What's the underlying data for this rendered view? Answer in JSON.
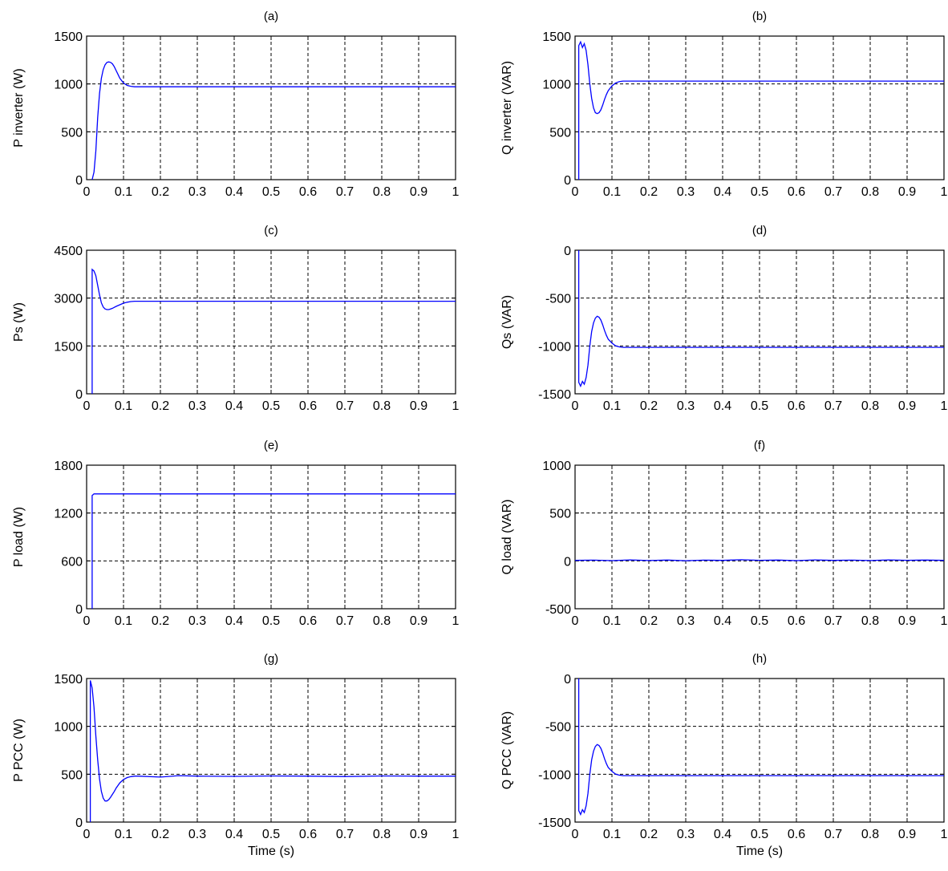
{
  "colors": {
    "line": "#0000ff",
    "axis": "#000000",
    "background": "#ffffff"
  },
  "chart_data": [
    {
      "type": "line",
      "title": "(a)",
      "xlabel": "",
      "ylabel": "P inverter (W)",
      "xlim": [
        0,
        1
      ],
      "ylim": [
        0,
        1500
      ],
      "xticks": [
        "0",
        "0.1",
        "0.2",
        "0.3",
        "0.4",
        "0.5",
        "0.6",
        "0.7",
        "0.8",
        "0.9",
        "1"
      ],
      "yticks": [
        "0",
        "500",
        "1000",
        "1500"
      ],
      "grid": true,
      "series": [
        {
          "x": [
            0.015,
            0.02,
            0.025,
            0.03,
            0.035,
            0.04,
            0.045,
            0.05,
            0.055,
            0.06,
            0.065,
            0.07,
            0.075,
            0.08,
            0.085,
            0.09,
            0.1,
            0.11,
            0.12,
            0.13,
            0.14,
            0.2,
            0.4,
            0.6,
            0.8,
            1.0
          ],
          "y": [
            0,
            80,
            300,
            650,
            900,
            1060,
            1150,
            1200,
            1225,
            1230,
            1225,
            1210,
            1180,
            1140,
            1100,
            1060,
            1010,
            985,
            975,
            970,
            970,
            970,
            970,
            970,
            970,
            970
          ]
        }
      ]
    },
    {
      "type": "line",
      "title": "(b)",
      "xlabel": "",
      "ylabel": "Q inverter (VAR)",
      "xlim": [
        0,
        1
      ],
      "ylim": [
        0,
        1500
      ],
      "xticks": [
        "0",
        "0.1",
        "0.2",
        "0.3",
        "0.4",
        "0.5",
        "0.6",
        "0.7",
        "0.8",
        "0.9",
        "1"
      ],
      "yticks": [
        "0",
        "500",
        "1000",
        "1500"
      ],
      "grid": true,
      "series": [
        {
          "x": [
            0.01,
            0.01,
            0.015,
            0.02,
            0.025,
            0.03,
            0.035,
            0.04,
            0.045,
            0.05,
            0.055,
            0.06,
            0.065,
            0.07,
            0.075,
            0.08,
            0.085,
            0.09,
            0.1,
            0.11,
            0.12,
            0.13,
            0.14,
            0.2,
            0.4,
            0.6,
            0.8,
            1.0
          ],
          "y": [
            0,
            1400,
            1440,
            1380,
            1420,
            1350,
            1200,
            1000,
            850,
            750,
            700,
            690,
            700,
            730,
            780,
            840,
            890,
            930,
            980,
            1010,
            1025,
            1030,
            1030,
            1030,
            1030,
            1030,
            1030,
            1030
          ]
        }
      ]
    },
    {
      "type": "line",
      "title": "(c)",
      "xlabel": "",
      "ylabel": "Ps (W)",
      "xlim": [
        0,
        1
      ],
      "ylim": [
        0,
        4500
      ],
      "xticks": [
        "0",
        "0.1",
        "0.2",
        "0.3",
        "0.4",
        "0.5",
        "0.6",
        "0.7",
        "0.8",
        "0.9",
        "1"
      ],
      "yticks": [
        "0",
        "1500",
        "3000",
        "4500"
      ],
      "grid": true,
      "series": [
        {
          "x": [
            0.015,
            0.015,
            0.02,
            0.025,
            0.03,
            0.035,
            0.04,
            0.045,
            0.05,
            0.055,
            0.06,
            0.065,
            0.07,
            0.075,
            0.08,
            0.09,
            0.1,
            0.11,
            0.12,
            0.13,
            0.14,
            0.2,
            0.4,
            0.6,
            0.8,
            1.0
          ],
          "y": [
            0,
            3900,
            3850,
            3700,
            3400,
            3100,
            2850,
            2720,
            2660,
            2640,
            2640,
            2660,
            2680,
            2710,
            2740,
            2790,
            2840,
            2870,
            2890,
            2900,
            2900,
            2900,
            2900,
            2900,
            2900,
            2900
          ]
        }
      ]
    },
    {
      "type": "line",
      "title": "(d)",
      "xlabel": "",
      "ylabel": "Qs (VAR)",
      "xlim": [
        0,
        1
      ],
      "ylim": [
        -1500,
        0
      ],
      "xticks": [
        "0",
        "0.1",
        "0.2",
        "0.3",
        "0.4",
        "0.5",
        "0.6",
        "0.7",
        "0.8",
        "0.9",
        "1"
      ],
      "yticks": [
        "-1500",
        "-1000",
        "-500",
        "0"
      ],
      "grid": true,
      "series": [
        {
          "x": [
            0.01,
            0.01,
            0.015,
            0.02,
            0.025,
            0.03,
            0.035,
            0.04,
            0.045,
            0.05,
            0.055,
            0.06,
            0.065,
            0.07,
            0.075,
            0.08,
            0.085,
            0.09,
            0.1,
            0.11,
            0.12,
            0.13,
            0.14,
            0.2,
            0.4,
            0.6,
            0.8,
            1.0
          ],
          "y": [
            0,
            -1380,
            -1420,
            -1370,
            -1400,
            -1330,
            -1200,
            -1000,
            -850,
            -760,
            -710,
            -690,
            -700,
            -730,
            -780,
            -840,
            -890,
            -930,
            -970,
            -1000,
            -1010,
            -1015,
            -1015,
            -1015,
            -1015,
            -1015,
            -1015,
            -1015
          ]
        }
      ]
    },
    {
      "type": "line",
      "title": "(e)",
      "xlabel": "",
      "ylabel": "P load (W)",
      "xlim": [
        0,
        1
      ],
      "ylim": [
        0,
        1800
      ],
      "xticks": [
        "0",
        "0.1",
        "0.2",
        "0.3",
        "0.4",
        "0.5",
        "0.6",
        "0.7",
        "0.8",
        "0.9",
        "1"
      ],
      "yticks": [
        "0",
        "600",
        "1200",
        "1800"
      ],
      "grid": true,
      "series": [
        {
          "x": [
            0.015,
            0.015,
            0.02,
            0.03,
            0.2,
            0.4,
            0.6,
            0.8,
            1.0
          ],
          "y": [
            0,
            1420,
            1440,
            1440,
            1440,
            1440,
            1440,
            1440,
            1440
          ]
        }
      ]
    },
    {
      "type": "line",
      "title": "(f)",
      "xlabel": "",
      "ylabel": "Q load (VAR)",
      "xlim": [
        0,
        1
      ],
      "ylim": [
        -500,
        1000
      ],
      "xticks": [
        "0",
        "0.1",
        "0.2",
        "0.3",
        "0.4",
        "0.5",
        "0.6",
        "0.7",
        "0.8",
        "0.9",
        "1"
      ],
      "yticks": [
        "-500",
        "0",
        "500",
        "1000"
      ],
      "grid": true,
      "series": [
        {
          "x": [
            0.0,
            0.05,
            0.1,
            0.15,
            0.2,
            0.25,
            0.3,
            0.35,
            0.4,
            0.45,
            0.5,
            0.55,
            0.6,
            0.65,
            0.7,
            0.75,
            0.8,
            0.85,
            0.9,
            0.95,
            1.0
          ],
          "y": [
            5,
            8,
            3,
            10,
            4,
            9,
            2,
            8,
            5,
            12,
            6,
            9,
            3,
            10,
            5,
            8,
            4,
            10,
            6,
            9,
            5
          ]
        }
      ]
    },
    {
      "type": "line",
      "title": "(g)",
      "xlabel": "Time (s)",
      "ylabel": "P PCC (W)",
      "xlim": [
        0,
        1
      ],
      "ylim": [
        0,
        1500
      ],
      "xticks": [
        "0",
        "0.1",
        "0.2",
        "0.3",
        "0.4",
        "0.5",
        "0.6",
        "0.7",
        "0.8",
        "0.9",
        "1"
      ],
      "yticks": [
        "0",
        "500",
        "1000",
        "1500"
      ],
      "grid": true,
      "series": [
        {
          "x": [
            0.01,
            0.01,
            0.015,
            0.02,
            0.025,
            0.03,
            0.035,
            0.04,
            0.045,
            0.05,
            0.055,
            0.06,
            0.065,
            0.07,
            0.075,
            0.08,
            0.09,
            0.1,
            0.11,
            0.12,
            0.13,
            0.14,
            0.2,
            0.25,
            0.3,
            0.4,
            0.5,
            0.6,
            0.7,
            0.8,
            0.9,
            1.0
          ],
          "y": [
            0,
            1480,
            1400,
            1200,
            900,
            650,
            450,
            320,
            250,
            220,
            220,
            235,
            260,
            290,
            320,
            355,
            410,
            445,
            465,
            475,
            480,
            480,
            470,
            485,
            480,
            478,
            482,
            480,
            476,
            482,
            480,
            480
          ]
        }
      ]
    },
    {
      "type": "line",
      "title": "(h)",
      "xlabel": "Time (s)",
      "ylabel": "Q PCC (VAR)",
      "xlim": [
        0,
        1
      ],
      "ylim": [
        -1500,
        0
      ],
      "xticks": [
        "0",
        "0.1",
        "0.2",
        "0.3",
        "0.4",
        "0.5",
        "0.6",
        "0.7",
        "0.8",
        "0.9",
        "1"
      ],
      "yticks": [
        "-1500",
        "-1000",
        "-500",
        "0"
      ],
      "grid": true,
      "series": [
        {
          "x": [
            0.01,
            0.01,
            0.015,
            0.02,
            0.025,
            0.03,
            0.035,
            0.04,
            0.045,
            0.05,
            0.055,
            0.06,
            0.065,
            0.07,
            0.075,
            0.08,
            0.085,
            0.09,
            0.1,
            0.11,
            0.12,
            0.13,
            0.14,
            0.2,
            0.4,
            0.6,
            0.8,
            1.0
          ],
          "y": [
            0,
            -1380,
            -1420,
            -1370,
            -1400,
            -1330,
            -1200,
            -1000,
            -850,
            -760,
            -710,
            -690,
            -700,
            -730,
            -780,
            -840,
            -890,
            -930,
            -970,
            -1000,
            -1010,
            -1015,
            -1015,
            -1015,
            -1015,
            -1015,
            -1015,
            -1015
          ]
        }
      ]
    }
  ]
}
